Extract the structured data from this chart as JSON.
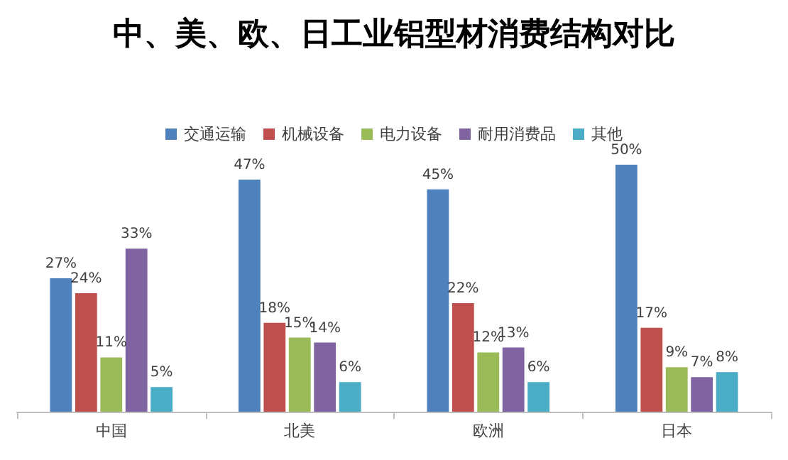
{
  "chart_data": {
    "type": "bar",
    "title": "中、美、欧、日工业铝型材消费结构对比",
    "categories": [
      "中国",
      "北美",
      "欧洲",
      "日本"
    ],
    "series": [
      {
        "name": "交通运输",
        "color": "#4f81bd",
        "values": [
          27,
          47,
          45,
          50
        ],
        "value_labels": [
          "27%",
          "47%",
          "45%",
          "50%"
        ]
      },
      {
        "name": "机械设备",
        "color": "#c0504d",
        "values": [
          24,
          18,
          22,
          17
        ],
        "value_labels": [
          "24%",
          "18%",
          "22%",
          "17%"
        ]
      },
      {
        "name": "电力设备",
        "color": "#9bbb59",
        "values": [
          11,
          15,
          12,
          9
        ],
        "value_labels": [
          "11%",
          "15%",
          "12%",
          "9%"
        ]
      },
      {
        "name": "耐用消费品",
        "color": "#8064a2",
        "values": [
          33,
          14,
          13,
          7
        ],
        "value_labels": [
          "33%",
          "14%",
          "13%",
          "7%"
        ]
      },
      {
        "name": "其他",
        "color": "#4bacc6",
        "values": [
          5,
          6,
          6,
          8
        ],
        "value_labels": [
          "5%",
          "6%",
          "6%",
          "8%"
        ]
      }
    ],
    "legend": "top"
  }
}
